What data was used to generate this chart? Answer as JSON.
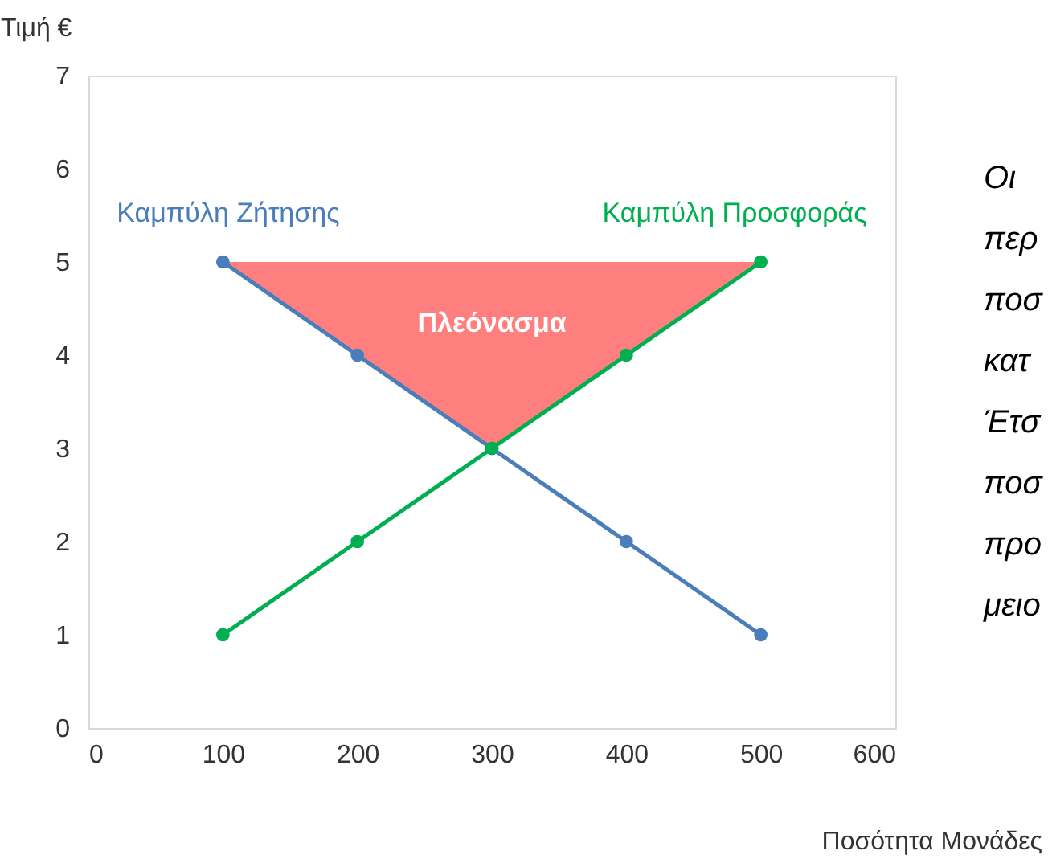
{
  "chart_data": {
    "type": "line",
    "xlabel": "Ποσότητα  Μονάδες",
    "ylabel": "Τιμή  €",
    "xlim": [
      0,
      600
    ],
    "xticks": [
      0,
      100,
      200,
      300,
      400,
      500,
      600
    ],
    "ylim": [
      0,
      7
    ],
    "yticks": [
      0,
      1,
      2,
      3,
      4,
      5,
      6,
      7
    ],
    "grid": false,
    "series": [
      {
        "type": "area",
        "name": "Πλεόνασμα",
        "color": "#ff7f7f",
        "x": [
          100,
          300,
          500
        ],
        "values": [
          5,
          3,
          5
        ]
      },
      {
        "name": "Καμπύλη Ζήτησης",
        "color": "#4a7ebb",
        "marker": "circle",
        "x": [
          100,
          200,
          300,
          400,
          500
        ],
        "values": [
          5,
          4,
          3,
          2,
          1
        ]
      },
      {
        "name": "Καμπύλη Προσφοράς",
        "color": "#00b050",
        "marker": "circle",
        "x": [
          100,
          200,
          300,
          400,
          500
        ],
        "values": [
          1,
          2,
          3,
          4,
          5
        ]
      }
    ],
    "annotations": [
      "Οι",
      "περ",
      "ποσ",
      "κατ",
      "Έτσ",
      "ποσ",
      "προ",
      "μειο"
    ]
  }
}
